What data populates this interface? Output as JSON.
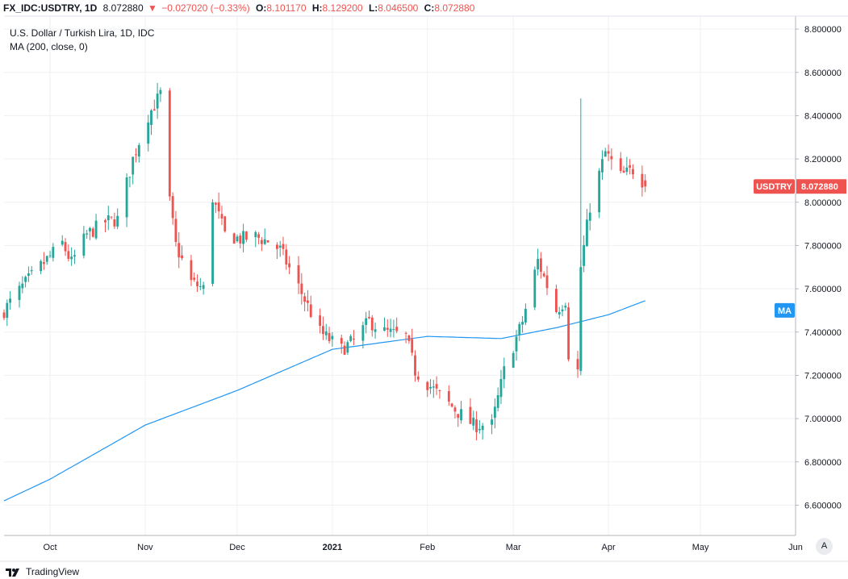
{
  "header": {
    "symbol": "FX_IDC:USDTRY, 1D",
    "last": "8.072880",
    "change": "−0.027020 (−0.33%)",
    "open_label": "O:",
    "open": "8.101170",
    "high_label": "H:",
    "high": "8.129200",
    "low_label": "L:",
    "low": "8.046500",
    "close_label": "C:",
    "close": "8.072880"
  },
  "legend": {
    "title": "U.S. Dollar / Turkish Lira, 1D, IDC",
    "indicator": "MA (200, close, 0)"
  },
  "price_badge": {
    "label": "USDTRY",
    "value": "8.072880",
    "color": "#ef5350"
  },
  "ma_badge": {
    "label": "MA",
    "color": "#2196f3"
  },
  "brand": {
    "name": "TradingView"
  },
  "auto_button": {
    "label": "A"
  },
  "colors": {
    "up": "#26a69a",
    "down": "#ef5350",
    "ma": "#2196f3",
    "grid": "#eef0f3",
    "axis": "#b2b5be"
  },
  "chart_data": {
    "type": "candlestick",
    "title": "U.S. Dollar / Turkish Lira, 1D, IDC",
    "ylim": [
      6.46,
      8.86
    ],
    "y_ticks": [
      "6.600000",
      "6.800000",
      "7.000000",
      "7.200000",
      "7.400000",
      "7.600000",
      "7.800000",
      "8.000000",
      "8.200000",
      "8.400000",
      "8.600000",
      "8.800000"
    ],
    "x_tick_labels": [
      "Oct",
      "Nov",
      "Dec",
      "2021",
      "Feb",
      "Mar",
      "Apr",
      "May",
      "Jun"
    ],
    "x_tick_dates": [
      "2020-10-01",
      "2020-11-01",
      "2020-12-01",
      "2021-01-01",
      "2021-02-01",
      "2021-03-01",
      "2021-04-01",
      "2021-05-01",
      "2021-06-01"
    ],
    "x_range": [
      "2020-09-16",
      "2021-06-01"
    ],
    "grid": true,
    "ohlc_close_anchors": [
      [
        "2020-09-16",
        7.5
      ],
      [
        "2020-09-22",
        7.61
      ],
      [
        "2020-09-29",
        7.72
      ],
      [
        "2020-10-05",
        7.81
      ],
      [
        "2020-10-08",
        7.72
      ],
      [
        "2020-10-13",
        7.85
      ],
      [
        "2020-10-19",
        7.91
      ],
      [
        "2020-10-23",
        7.92
      ],
      [
        "2020-10-28",
        8.2
      ],
      [
        "2020-11-02",
        8.4
      ],
      [
        "2020-11-06",
        8.5
      ],
      [
        "2020-11-09",
        8.0
      ],
      [
        "2020-11-11",
        7.8
      ],
      [
        "2020-11-16",
        7.63
      ],
      [
        "2020-11-20",
        7.6
      ],
      [
        "2020-11-23",
        8.02
      ],
      [
        "2020-11-27",
        7.85
      ],
      [
        "2020-12-02",
        7.83
      ],
      [
        "2020-12-07",
        7.84
      ],
      [
        "2020-12-11",
        7.82
      ],
      [
        "2020-12-15",
        7.78
      ],
      [
        "2020-12-22",
        7.58
      ],
      [
        "2020-12-28",
        7.4
      ],
      [
        "2021-01-04",
        7.32
      ],
      [
        "2021-01-08",
        7.36
      ],
      [
        "2021-01-13",
        7.45
      ],
      [
        "2021-01-18",
        7.4
      ],
      [
        "2021-01-25",
        7.38
      ],
      [
        "2021-01-28",
        7.22
      ],
      [
        "2021-02-04",
        7.12
      ],
      [
        "2021-02-11",
        7.03
      ],
      [
        "2021-02-16",
        6.97
      ],
      [
        "2021-02-22",
        6.97
      ],
      [
        "2021-02-26",
        7.22
      ],
      [
        "2021-03-04",
        7.45
      ],
      [
        "2021-03-09",
        7.73
      ],
      [
        "2021-03-15",
        7.5
      ],
      [
        "2021-03-18",
        7.55
      ],
      [
        "2021-03-19",
        7.3
      ],
      [
        "2021-03-22",
        7.22
      ],
      [
        "2021-03-23",
        7.7
      ],
      [
        "2021-03-26",
        7.98
      ],
      [
        "2021-03-31",
        8.23
      ],
      [
        "2021-04-05",
        8.12
      ],
      [
        "2021-04-09",
        8.15
      ],
      [
        "2021-04-12",
        8.1
      ],
      [
        "2021-04-13",
        8.07
      ]
    ],
    "ma_anchors": [
      [
        "2020-09-16",
        6.62
      ],
      [
        "2020-10-01",
        6.72
      ],
      [
        "2020-11-01",
        6.97
      ],
      [
        "2020-12-01",
        7.13
      ],
      [
        "2021-01-01",
        7.32
      ],
      [
        "2021-02-01",
        7.38
      ],
      [
        "2021-02-25",
        7.37
      ],
      [
        "2021-03-15",
        7.42
      ],
      [
        "2021-04-01",
        7.48
      ],
      [
        "2021-04-13",
        7.545
      ]
    ]
  }
}
